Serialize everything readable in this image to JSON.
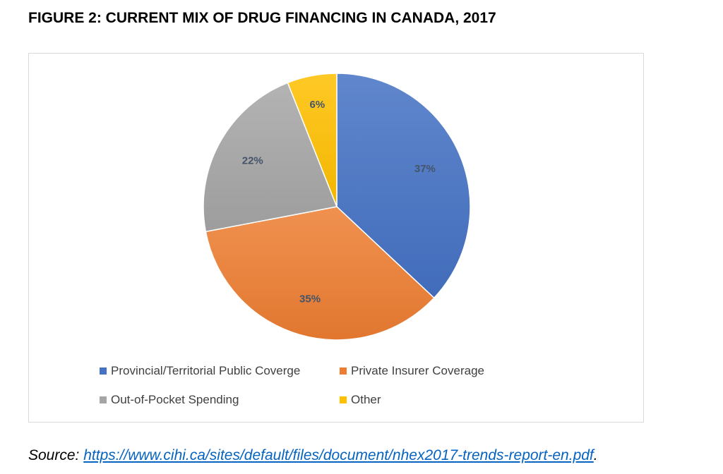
{
  "figure_title": "FIGURE 2: CURRENT MIX OF DRUG FINANCING IN CANADA, 2017",
  "source": {
    "prefix": "Source:",
    "link_text": "https://www.cihi.ca/sites/default/files/document/nhex2017-trends-report-en.pdf",
    "suffix": "."
  },
  "chart_data": {
    "type": "pie",
    "title": "",
    "legend_position": "bottom",
    "series": [
      {
        "name": "Provincial/Territorial Public Coverge",
        "value": 37,
        "label": "37%",
        "color": "#4472c4"
      },
      {
        "name": "Private Insurer Coverage",
        "value": 35,
        "label": "35%",
        "color": "#ed7d31"
      },
      {
        "name": "Out-of-Pocket Spending",
        "value": 22,
        "label": "22%",
        "color": "#a5a5a5"
      },
      {
        "name": "Other",
        "value": 6,
        "label": "6%",
        "color": "#ffc000"
      }
    ]
  }
}
